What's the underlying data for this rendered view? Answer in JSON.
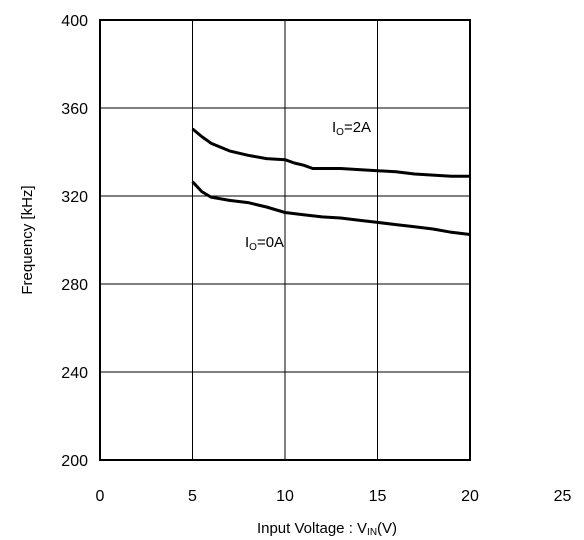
{
  "chart_data": {
    "type": "line",
    "title": "",
    "xlabel": {
      "main": "Input Voltage : V",
      "sub": "IN",
      "tail": "(V)"
    },
    "ylabel": "Frequency [kHz]",
    "xlim": [
      0,
      25
    ],
    "ylim": [
      200,
      400
    ],
    "xticks": [
      "0",
      "5",
      "10",
      "15",
      "20",
      "25"
    ],
    "yticks": [
      "200",
      "240",
      "280",
      "320",
      "360",
      "400"
    ],
    "xtick_values": [
      0,
      5,
      10,
      15,
      20,
      25
    ],
    "ytick_values": [
      200,
      240,
      280,
      320,
      360,
      400
    ],
    "grid": true,
    "series": [
      {
        "name": "IO=2A",
        "label_main": "I",
        "label_sub": "O",
        "label_tail": "=2A",
        "x": [
          5,
          5.5,
          6,
          7,
          8,
          9,
          10,
          10.5,
          11,
          11.5,
          12,
          13,
          14,
          15,
          16,
          17,
          18,
          19,
          20
        ],
        "y": [
          350.5,
          347,
          344,
          340.5,
          338.5,
          337,
          336.5,
          335,
          334,
          332.5,
          332.5,
          332.5,
          332,
          331.5,
          331,
          330,
          329.5,
          329,
          329
        ]
      },
      {
        "name": "IO=0A",
        "label_main": "I",
        "label_sub": "O",
        "label_tail": "=0A",
        "x": [
          5,
          5.5,
          6,
          7,
          8,
          9,
          10,
          11,
          12,
          13,
          14,
          15,
          16,
          17,
          18,
          19,
          20
        ],
        "y": [
          326.5,
          322,
          319.5,
          318,
          317,
          315,
          312.5,
          311.5,
          310.5,
          310,
          309,
          308,
          307,
          306,
          305,
          303.5,
          302.5
        ]
      }
    ],
    "colors": {
      "line": "#000000",
      "grid": "#000000",
      "background": "#ffffff"
    }
  }
}
